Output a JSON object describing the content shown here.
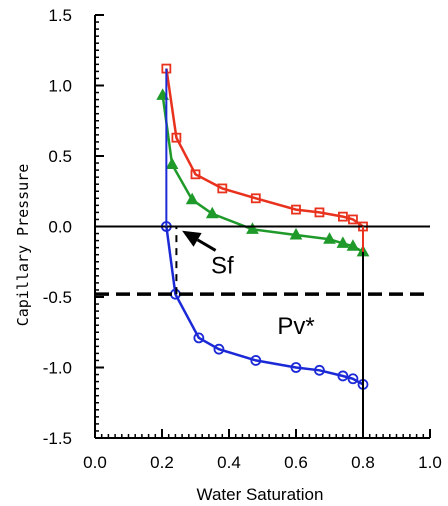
{
  "chart_data": {
    "type": "line",
    "xlabel": "Water Saturation",
    "ylabel": "Capillary Pressure",
    "xlim": [
      0.0,
      1.0
    ],
    "ylim": [
      -1.5,
      1.5
    ],
    "xticks": [
      "0.0",
      "0.2",
      "0.4",
      "0.6",
      "0.8",
      "1.0"
    ],
    "yticks": [
      "-1.5",
      "-1.0",
      "-0.5",
      "0.0",
      "0.5",
      "1.0",
      "1.5"
    ],
    "grid": false,
    "legend": "none",
    "series": [
      {
        "color": "#e8321e",
        "marker": "square",
        "points": [
          [
            0.213,
            1.12
          ],
          [
            0.243,
            0.63
          ],
          [
            0.3,
            0.37
          ],
          [
            0.38,
            0.27
          ],
          [
            0.48,
            0.2
          ],
          [
            0.6,
            0.12
          ],
          [
            0.67,
            0.1
          ],
          [
            0.74,
            0.07
          ],
          [
            0.77,
            0.05
          ],
          [
            0.8,
            0.0
          ]
        ]
      },
      {
        "color": "#1f9a2a",
        "marker": "triangle",
        "points": [
          [
            0.202,
            0.93
          ],
          [
            0.23,
            0.44
          ],
          [
            0.29,
            0.19
          ],
          [
            0.35,
            0.09
          ],
          [
            0.47,
            -0.02
          ],
          [
            0.6,
            -0.06
          ],
          [
            0.7,
            -0.09
          ],
          [
            0.74,
            -0.12
          ],
          [
            0.77,
            -0.14
          ],
          [
            0.8,
            -0.18
          ]
        ]
      },
      {
        "color": "#1b2ad6",
        "marker": "circle",
        "points": [
          [
            0.213,
            0.0
          ],
          [
            0.24,
            -0.48
          ],
          [
            0.31,
            -0.79
          ],
          [
            0.37,
            -0.87
          ],
          [
            0.48,
            -0.95
          ],
          [
            0.6,
            -1.0
          ],
          [
            0.67,
            -1.02
          ],
          [
            0.74,
            -1.06
          ],
          [
            0.77,
            -1.08
          ],
          [
            0.8,
            -1.12
          ]
        ]
      }
    ],
    "reference_lines": [
      {
        "kind": "horizontal",
        "y": 0.0,
        "from_x": 0.0,
        "to_x": 1.0,
        "style": "solid",
        "color": "#000000"
      },
      {
        "kind": "horizontal",
        "y": -0.48,
        "from_x": 0.0,
        "to_x": 1.0,
        "style": "dashed",
        "color": "#000000"
      },
      {
        "kind": "vertical",
        "x": 0.8,
        "from_y": -1.5,
        "to_y": 0.0,
        "style": "solid",
        "color": "#000000"
      },
      {
        "kind": "vertical",
        "x": 0.243,
        "from_y": -0.48,
        "to_y": 0.0,
        "style": "dashed",
        "color": "#000000"
      },
      {
        "kind": "vertical",
        "x": 0.8,
        "from_y": -0.18,
        "to_y": 0.0,
        "style": "solid",
        "color": "#e8321e"
      },
      {
        "kind": "vertical",
        "x": 0.213,
        "from_y": 0.0,
        "to_y": 1.12,
        "style": "solid",
        "color": "#1b2ad6"
      }
    ],
    "annotations": [
      {
        "text": "Sf",
        "x": 0.38,
        "y": -0.27
      },
      {
        "text": "Pv*",
        "x": 0.6,
        "y": -0.7
      }
    ],
    "arrows": [
      {
        "from": [
          0.36,
          -0.17
        ],
        "to": [
          0.26,
          -0.03
        ],
        "color": "#000000"
      }
    ]
  }
}
